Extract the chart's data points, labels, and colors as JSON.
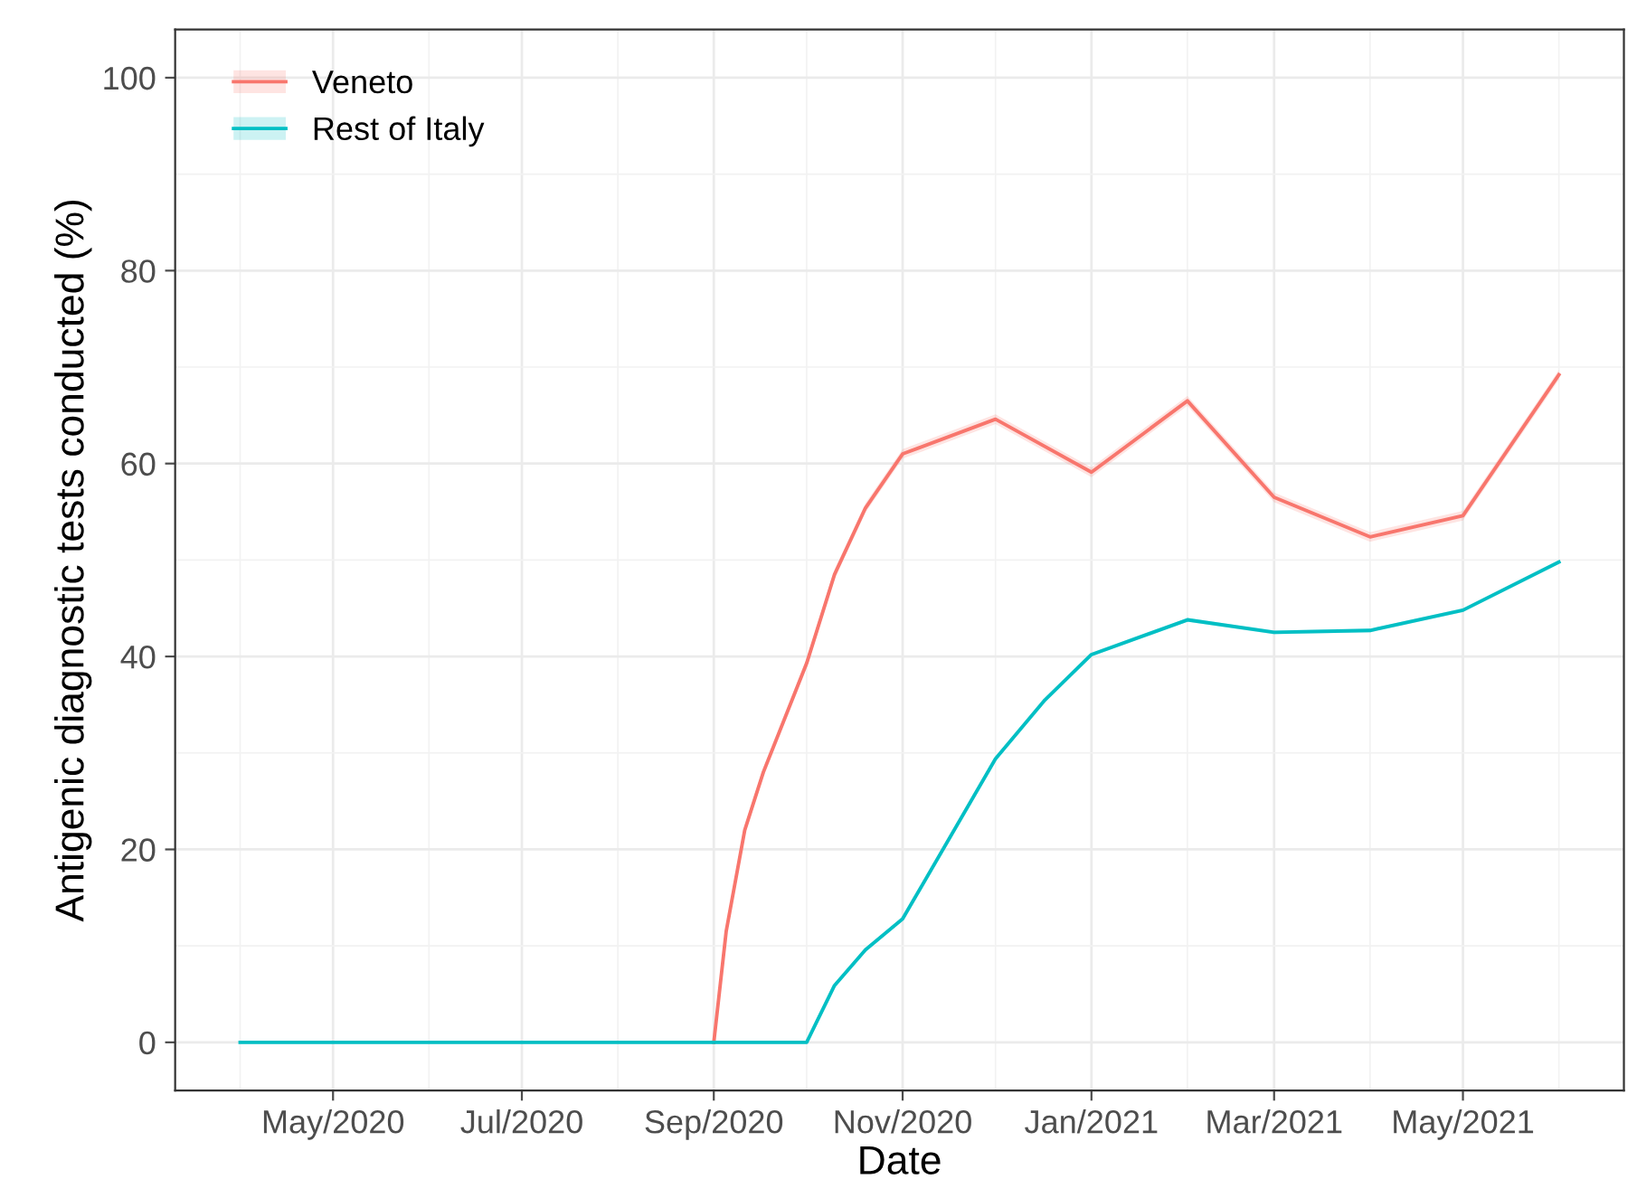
{
  "chart_data": {
    "type": "line",
    "xlabel": "Date",
    "ylabel": "Antigenic diagnostic tests conducted (%)",
    "xlim": [
      "2020-03-11",
      "2021-06-22"
    ],
    "ylim": [
      -5,
      105
    ],
    "xticks": [
      {
        "value": "2020-04-01",
        "label": null
      },
      {
        "value": "2020-05-01",
        "label": "May/2020"
      },
      {
        "value": "2020-06-01",
        "label": null
      },
      {
        "value": "2020-07-01",
        "label": "Jul/2020"
      },
      {
        "value": "2020-08-01",
        "label": null
      },
      {
        "value": "2020-09-01",
        "label": "Sep/2020"
      },
      {
        "value": "2020-10-01",
        "label": null
      },
      {
        "value": "2020-11-01",
        "label": "Nov/2020"
      },
      {
        "value": "2020-12-01",
        "label": null
      },
      {
        "value": "2021-01-01",
        "label": "Jan/2021"
      },
      {
        "value": "2021-02-01",
        "label": null
      },
      {
        "value": "2021-03-01",
        "label": "Mar/2021"
      },
      {
        "value": "2021-04-01",
        "label": null
      },
      {
        "value": "2021-05-01",
        "label": "May/2021"
      },
      {
        "value": "2021-06-01",
        "label": null
      }
    ],
    "yticks": [
      0,
      {
        "value": 10,
        "label": null
      },
      20,
      {
        "value": 30,
        "label": null
      },
      40,
      {
        "value": 50,
        "label": null
      },
      60,
      {
        "value": 70,
        "label": null
      },
      80,
      {
        "value": 90,
        "label": null
      },
      100
    ],
    "grid": true,
    "legend": "top left",
    "marker": "none",
    "line_style": "solid",
    "series": [
      {
        "name": "Veneto",
        "color": "#f8766d",
        "x": [
          "2020-09-01",
          "2020-09-05",
          "2020-09-11",
          "2020-09-17",
          "2020-10-01",
          "2020-10-10",
          "2020-10-20",
          "2020-11-01",
          "2020-12-01",
          "2021-01-01",
          "2021-02-01",
          "2021-03-01",
          "2021-04-01",
          "2021-05-01",
          "2021-06-01"
        ],
        "values": [
          0,
          11.5,
          22,
          28,
          39.3,
          48.5,
          55.4,
          61,
          64.6,
          59.1,
          66.5,
          56.5,
          52.4,
          54.6,
          69.2
        ],
        "lower": [
          0,
          11,
          21.5,
          27.5,
          38.8,
          48,
          54.9,
          60.5,
          64.1,
          58.6,
          66,
          56,
          51.9,
          54.1,
          68.7
        ],
        "upper": [
          0,
          12,
          22.5,
          28.5,
          39.8,
          49,
          55.9,
          61.5,
          65.1,
          59.6,
          67,
          57,
          52.9,
          55.1,
          69.7
        ]
      },
      {
        "name": "Rest of Italy",
        "color": "#00bfc4",
        "x": [
          "2020-04-01",
          "2020-05-01",
          "2020-06-01",
          "2020-07-01",
          "2020-08-01",
          "2020-09-01",
          "2020-10-01",
          "2020-10-10",
          "2020-10-20",
          "2020-11-01",
          "2020-12-01",
          "2020-12-17",
          "2021-01-01",
          "2021-02-01",
          "2021-03-01",
          "2021-04-01",
          "2021-05-01",
          "2021-06-01"
        ],
        "values": [
          0,
          0,
          0,
          0,
          0,
          0,
          0,
          5.9,
          9.6,
          12.8,
          29.4,
          35.5,
          40.2,
          43.8,
          42.5,
          42.7,
          44.8,
          49.8
        ],
        "lower": [
          0,
          0,
          0,
          0,
          0,
          0,
          0,
          5.7,
          9.4,
          12.6,
          29.2,
          35.3,
          40,
          43.6,
          42.3,
          42.5,
          44.6,
          49.6
        ],
        "upper": [
          0,
          0,
          0,
          0,
          0,
          0,
          0,
          6.1,
          9.8,
          13,
          29.6,
          35.7,
          40.4,
          44,
          42.7,
          42.9,
          45,
          50
        ]
      }
    ]
  }
}
